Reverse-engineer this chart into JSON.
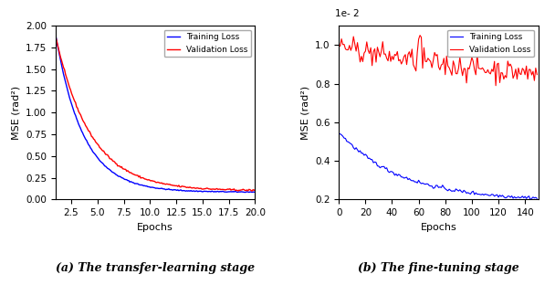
{
  "left": {
    "title": "(a) The transfer-learning stage",
    "xlabel": "Epochs",
    "ylabel": "MSE (rad²)",
    "xlim": [
      1,
      20
    ],
    "ylim": [
      0,
      2.0
    ],
    "yticks": [
      0.0,
      0.25,
      0.5,
      0.75,
      1.0,
      1.25,
      1.5,
      1.75,
      2.0
    ],
    "xticks": [
      2.5,
      5.0,
      7.5,
      10.0,
      12.5,
      15.0,
      17.5,
      20.0
    ],
    "train_color": "#0000ff",
    "val_color": "#ff0000",
    "n_epochs": 200
  },
  "right": {
    "title": "(b) The fine-tuning stage",
    "xlabel": "Epochs",
    "ylabel": "MSE (rad²)",
    "xlim": [
      0,
      150
    ],
    "ylim": [
      0.2,
      1.1
    ],
    "yticks": [
      0.2,
      0.4,
      0.6,
      0.8,
      1.0
    ],
    "xticks": [
      0,
      20,
      40,
      60,
      80,
      100,
      120,
      140
    ],
    "scale_label": "1e- 2",
    "train_color": "#0000ff",
    "val_color": "#ff0000",
    "n_epochs": 150
  },
  "legend_train": "Training Loss",
  "legend_val": "Validation Loss",
  "fig_facecolor": "#ffffff"
}
